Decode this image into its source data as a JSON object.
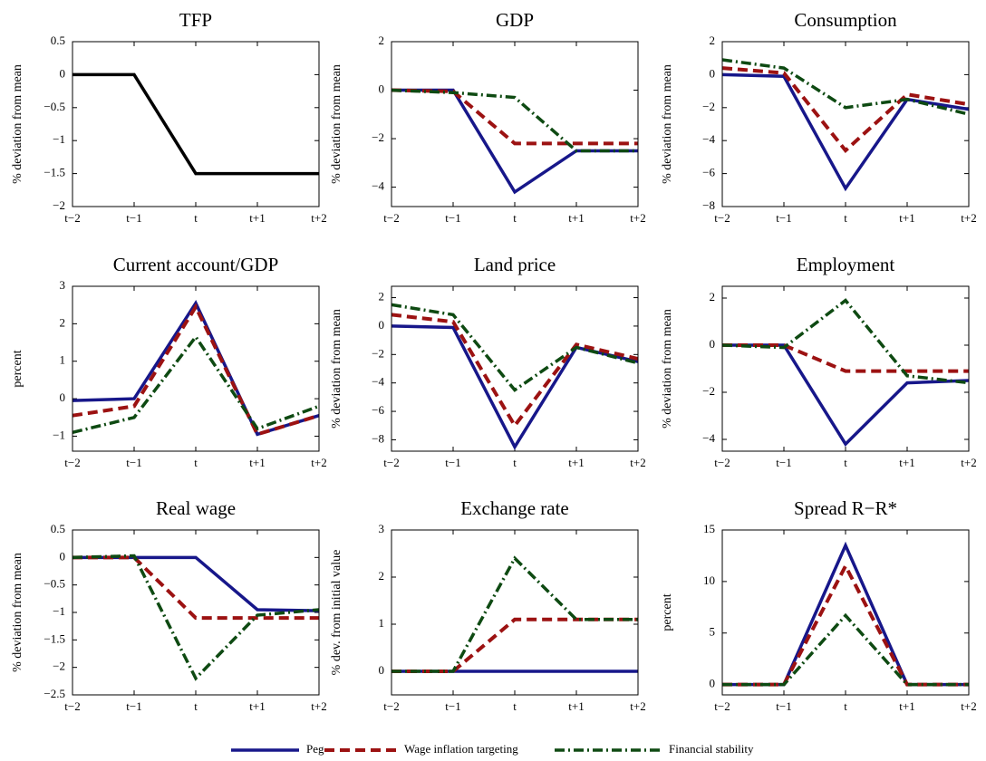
{
  "chart_data": [
    {
      "type": "line",
      "title": "TFP",
      "y_label": "% deviation from mean",
      "categories": [
        "t−2",
        "t−1",
        "t",
        "t+1",
        "t+2"
      ],
      "ylim": [
        -2,
        0.5
      ],
      "yticks": [
        {
          "value": -2,
          "label": "−2"
        },
        {
          "value": -1.5,
          "label": "−1.5"
        },
        {
          "value": -1,
          "label": "−1"
        },
        {
          "value": -0.5,
          "label": "−0.5"
        },
        0,
        0.5
      ],
      "series": [
        {
          "color": "#000000",
          "style": "solid",
          "values": [
            0,
            0,
            -1.5,
            -1.5,
            -1.5
          ]
        }
      ]
    },
    {
      "type": "line",
      "title": "GDP",
      "y_label": "% deviation from mean",
      "categories": [
        "t−2",
        "t−1",
        "t",
        "t+1",
        "t+2"
      ],
      "ylim": [
        -4.8,
        2
      ],
      "yticks": [
        {
          "value": -4,
          "label": "−4"
        },
        {
          "value": -2,
          "label": "−2"
        },
        0,
        2
      ],
      "series": [
        {
          "name": "Peg",
          "color": "#17178a",
          "style": "solid",
          "values": [
            0,
            0,
            -4.2,
            -2.5,
            -2.5
          ]
        },
        {
          "name": "Wage inflation targeting",
          "color": "#9c1212",
          "style": "dash",
          "values": [
            0,
            -0.05,
            -2.2,
            -2.2,
            -2.2
          ]
        },
        {
          "name": "Financial stability",
          "color": "#0e4a12",
          "style": "dashdot",
          "values": [
            0,
            -0.1,
            -0.3,
            -2.5,
            -2.5
          ]
        }
      ]
    },
    {
      "type": "line",
      "title": "Consumption",
      "y_label": "% deviation from mean",
      "categories": [
        "t−2",
        "t−1",
        "t",
        "t+1",
        "t+2"
      ],
      "ylim": [
        -8,
        2
      ],
      "yticks": [
        {
          "value": -8,
          "label": "−8"
        },
        {
          "value": -6,
          "label": "−6"
        },
        {
          "value": -4,
          "label": "−4"
        },
        {
          "value": -2,
          "label": "−2"
        },
        0,
        2
      ],
      "series": [
        {
          "name": "Peg",
          "color": "#17178a",
          "style": "solid",
          "values": [
            0,
            -0.1,
            -6.9,
            -1.5,
            -2.1
          ]
        },
        {
          "name": "Wage inflation targeting",
          "color": "#9c1212",
          "style": "dash",
          "values": [
            0.4,
            0.1,
            -4.6,
            -1.2,
            -1.8
          ]
        },
        {
          "name": "Financial stability",
          "color": "#0e4a12",
          "style": "dashdot",
          "values": [
            0.9,
            0.4,
            -2,
            -1.5,
            -2.4
          ]
        }
      ]
    },
    {
      "type": "line",
      "title": "Current account/GDP",
      "y_label": "percent",
      "categories": [
        "t−2",
        "t−1",
        "t",
        "t+1",
        "t+2"
      ],
      "ylim": [
        -1.4,
        3
      ],
      "yticks": [
        {
          "value": -1,
          "label": "−1"
        },
        0,
        1,
        2,
        3
      ],
      "series": [
        {
          "name": "Peg",
          "color": "#17178a",
          "style": "solid",
          "values": [
            -0.05,
            0,
            2.55,
            -0.95,
            -0.45
          ]
        },
        {
          "name": "Wage inflation targeting",
          "color": "#9c1212",
          "style": "dash",
          "values": [
            -0.45,
            -0.2,
            2.45,
            -0.95,
            -0.45
          ]
        },
        {
          "name": "Financial stability",
          "color": "#0e4a12",
          "style": "dashdot",
          "values": [
            -0.9,
            -0.5,
            1.65,
            -0.8,
            -0.2
          ]
        }
      ]
    },
    {
      "type": "line",
      "title": "Land price",
      "y_label": "% deviation from mean",
      "categories": [
        "t−2",
        "t−1",
        "t",
        "t+1",
        "t+2"
      ],
      "ylim": [
        -8.8,
        2.8
      ],
      "yticks": [
        {
          "value": -8,
          "label": "−8"
        },
        {
          "value": -6,
          "label": "−6"
        },
        {
          "value": -4,
          "label": "−4"
        },
        {
          "value": -2,
          "label": "−2"
        },
        0,
        2
      ],
      "series": [
        {
          "name": "Peg",
          "color": "#17178a",
          "style": "solid",
          "values": [
            0,
            -0.1,
            -8.5,
            -1.5,
            -2.5
          ]
        },
        {
          "name": "Wage inflation targeting",
          "color": "#9c1212",
          "style": "dash",
          "values": [
            0.8,
            0.3,
            -7,
            -1.3,
            -2.3
          ]
        },
        {
          "name": "Financial stability",
          "color": "#0e4a12",
          "style": "dashdot",
          "values": [
            1.5,
            0.8,
            -4.5,
            -1.5,
            -2.6
          ]
        }
      ]
    },
    {
      "type": "line",
      "title": "Employment",
      "y_label": "% deviation from mean",
      "categories": [
        "t−2",
        "t−1",
        "t",
        "t+1",
        "t+2"
      ],
      "ylim": [
        -4.5,
        2.5
      ],
      "yticks": [
        {
          "value": -4,
          "label": "−4"
        },
        {
          "value": -2,
          "label": "−2"
        },
        0,
        2
      ],
      "series": [
        {
          "name": "Peg",
          "color": "#17178a",
          "style": "solid",
          "values": [
            0,
            0,
            -4.2,
            -1.6,
            -1.5
          ]
        },
        {
          "name": "Wage inflation targeting",
          "color": "#9c1212",
          "style": "dash",
          "values": [
            0,
            0,
            -1.1,
            -1.1,
            -1.1
          ]
        },
        {
          "name": "Financial stability",
          "color": "#0e4a12",
          "style": "dashdot",
          "values": [
            0,
            -0.1,
            1.9,
            -1.3,
            -1.6
          ]
        }
      ]
    },
    {
      "type": "line",
      "title": "Real wage",
      "y_label": "% deviation from mean",
      "categories": [
        "t−2",
        "t−1",
        "t",
        "t+1",
        "t+2"
      ],
      "ylim": [
        -2.5,
        0.5
      ],
      "yticks": [
        {
          "value": -2.5,
          "label": "−2.5"
        },
        {
          "value": -2,
          "label": "−2"
        },
        {
          "value": -1.5,
          "label": "−1.5"
        },
        {
          "value": -1,
          "label": "−1"
        },
        {
          "value": -0.5,
          "label": "−0.5"
        },
        0,
        0.5
      ],
      "series": [
        {
          "name": "Peg",
          "color": "#17178a",
          "style": "solid",
          "values": [
            0,
            0,
            0,
            -0.95,
            -0.97
          ]
        },
        {
          "name": "Wage inflation targeting",
          "color": "#9c1212",
          "style": "dash",
          "values": [
            0,
            0,
            -1.1,
            -1.1,
            -1.1
          ]
        },
        {
          "name": "Financial stability",
          "color": "#0e4a12",
          "style": "dashdot",
          "values": [
            0,
            0.03,
            -2.2,
            -1.05,
            -0.95
          ]
        }
      ]
    },
    {
      "type": "line",
      "title": "Exchange rate",
      "y_label": "% dev. from initial value",
      "categories": [
        "t−2",
        "t−1",
        "t",
        "t+1",
        "t+2"
      ],
      "ylim": [
        -0.5,
        3
      ],
      "yticks": [
        0,
        1,
        2,
        3
      ],
      "series": [
        {
          "name": "Peg",
          "color": "#17178a",
          "style": "solid",
          "values": [
            0,
            0,
            0,
            0,
            0
          ]
        },
        {
          "name": "Wage inflation targeting",
          "color": "#9c1212",
          "style": "dash",
          "values": [
            0,
            0,
            1.1,
            1.1,
            1.1
          ]
        },
        {
          "name": "Financial stability",
          "color": "#0e4a12",
          "style": "dashdot",
          "values": [
            0,
            0,
            2.4,
            1.1,
            1.1
          ]
        }
      ]
    },
    {
      "type": "line",
      "title": "Spread R−R*",
      "y_label": "percent",
      "categories": [
        "t−2",
        "t−1",
        "t",
        "t+1",
        "t+2"
      ],
      "ylim": [
        -1,
        15
      ],
      "yticks": [
        0,
        5,
        10,
        15
      ],
      "series": [
        {
          "name": "Peg",
          "color": "#17178a",
          "style": "solid",
          "values": [
            0,
            0,
            13.5,
            0,
            0
          ]
        },
        {
          "name": "Wage inflation targeting",
          "color": "#9c1212",
          "style": "dash",
          "values": [
            0,
            0,
            11.5,
            0,
            0
          ]
        },
        {
          "name": "Financial stability",
          "color": "#0e4a12",
          "style": "dashdot",
          "values": [
            0,
            0,
            6.7,
            0,
            0
          ]
        }
      ]
    }
  ]
}
